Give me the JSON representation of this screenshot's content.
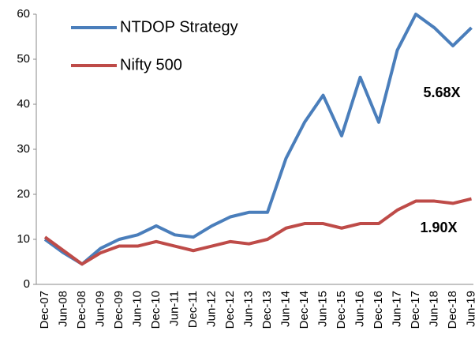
{
  "chart_data": {
    "type": "line",
    "categories": [
      "Dec-07",
      "Jun-08",
      "Dec-08",
      "Jun-09",
      "Dec-09",
      "Jun-10",
      "Dec-10",
      "Jun-11",
      "Dec-11",
      "Jun-12",
      "Dec-12",
      "Jun-13",
      "Dec-13",
      "Jun-14",
      "Dec-14",
      "Jun-15",
      "Dec-15",
      "Jun-16",
      "Dec-16",
      "Jun-17",
      "Dec-17",
      "Jun-18",
      "Dec-18",
      "Jun-19"
    ],
    "series": [
      {
        "name": "NTDOP Strategy",
        "color": "#4a7ebb",
        "values": [
          10,
          7,
          4.5,
          8,
          10,
          11,
          13,
          11,
          10.5,
          13,
          15,
          16,
          16,
          28,
          36,
          42,
          33,
          46,
          36,
          52,
          60,
          57,
          53,
          57
        ]
      },
      {
        "name": "Nifty 500",
        "color": "#be4b48",
        "values": [
          10.5,
          7.5,
          4.5,
          7,
          8.5,
          8.5,
          9.5,
          8.5,
          7.5,
          8.5,
          9.5,
          9,
          10,
          12.5,
          13.5,
          13.5,
          12.5,
          13.5,
          13.5,
          16.5,
          18.5,
          18.5,
          18,
          19
        ]
      }
    ],
    "annotations": [
      "5.68X",
      "1.90X"
    ],
    "ylim": [
      0,
      60
    ],
    "yticks": [
      0,
      10,
      20,
      30,
      40,
      50,
      60
    ],
    "grid": false,
    "legend": "top-left"
  }
}
